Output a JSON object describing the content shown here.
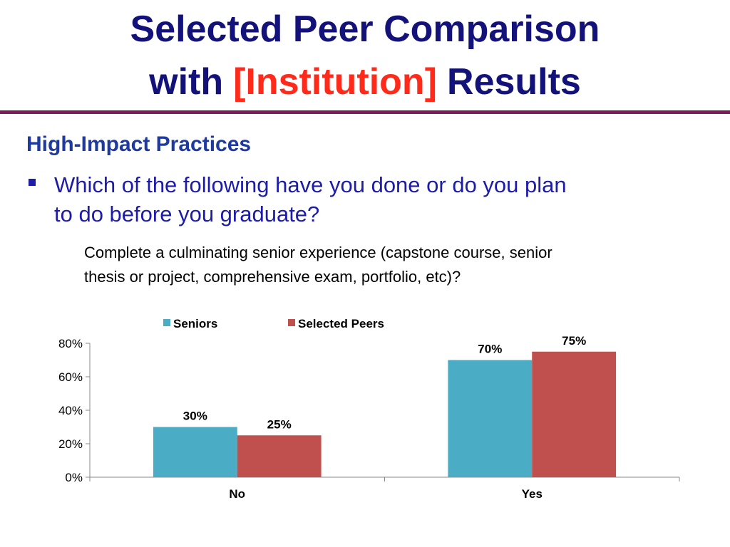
{
  "header": {
    "title_line1": "Selected Peer Comparison",
    "title_with": "with",
    "title_highlight": "[Institution]",
    "title_end": "Results"
  },
  "section": "High-Impact Practices",
  "question_lines": [
    "Which of the following have you done or do you plan",
    "to do before you graduate?"
  ],
  "sub_question_lines": [
    "Complete a culminating senior experience (capstone course, senior",
    "thesis or project, comprehensive exam, portfolio, etc)?"
  ],
  "chart_data": {
    "type": "bar",
    "categories": [
      "No",
      "Yes"
    ],
    "series": [
      {
        "name": "Seniors",
        "color": "#4bacc6",
        "values": [
          30,
          70
        ],
        "value_labels": [
          "30%",
          "70%"
        ]
      },
      {
        "name": "Selected Peers",
        "color": "#c0504d",
        "values": [
          25,
          75
        ],
        "value_labels": [
          "25%",
          "75%"
        ]
      }
    ],
    "ylim": [
      0,
      80
    ],
    "yticks": [
      {
        "value": 0,
        "label": "0%"
      },
      {
        "value": 20,
        "label": "20%"
      },
      {
        "value": 40,
        "label": "40%"
      },
      {
        "value": 60,
        "label": "60%"
      },
      {
        "value": 80,
        "label": "80%"
      }
    ],
    "grid": false,
    "legend": "top"
  }
}
